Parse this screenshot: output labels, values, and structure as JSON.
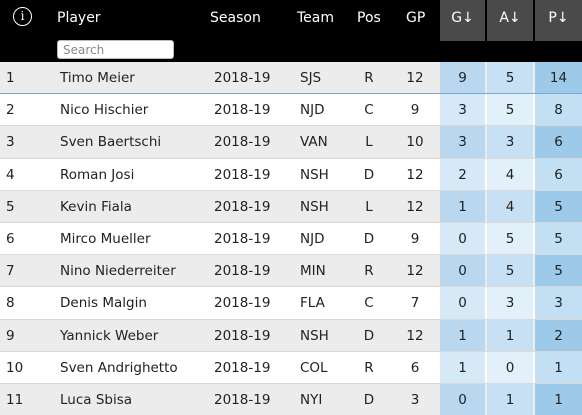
{
  "header": {
    "info_glyph": "i",
    "player": "Player",
    "season": "Season",
    "team": "Team",
    "pos": "Pos",
    "gp": "GP",
    "g": "G↓",
    "a": "A↓",
    "p": "P↓",
    "search_placeholder": "Search"
  },
  "colors": {
    "header_bg": "#000000",
    "sort_header_bg": "#4a4a4a",
    "row_even": "#ececec",
    "row_odd": "#ffffff",
    "g_even": "#b9d8ef",
    "g_odd": "#d6e9f7",
    "a_even": "#c8e0f3",
    "a_odd": "#e2f0fa",
    "p_even": "#9ecae9",
    "p_odd": "#c2dff3"
  },
  "rows": [
    {
      "rank": "1",
      "player": "Timo Meier",
      "season": "2018-19",
      "team": "SJS",
      "pos": "R",
      "gp": "12",
      "g": "9",
      "a": "5",
      "p": "14"
    },
    {
      "rank": "2",
      "player": "Nico Hischier",
      "season": "2018-19",
      "team": "NJD",
      "pos": "C",
      "gp": "9",
      "g": "3",
      "a": "5",
      "p": "8"
    },
    {
      "rank": "3",
      "player": "Sven Baertschi",
      "season": "2018-19",
      "team": "VAN",
      "pos": "L",
      "gp": "10",
      "g": "3",
      "a": "3",
      "p": "6"
    },
    {
      "rank": "4",
      "player": "Roman Josi",
      "season": "2018-19",
      "team": "NSH",
      "pos": "D",
      "gp": "12",
      "g": "2",
      "a": "4",
      "p": "6"
    },
    {
      "rank": "5",
      "player": "Kevin Fiala",
      "season": "2018-19",
      "team": "NSH",
      "pos": "L",
      "gp": "12",
      "g": "1",
      "a": "4",
      "p": "5"
    },
    {
      "rank": "6",
      "player": "Mirco Mueller",
      "season": "2018-19",
      "team": "NJD",
      "pos": "D",
      "gp": "9",
      "g": "0",
      "a": "5",
      "p": "5"
    },
    {
      "rank": "7",
      "player": "Nino Niederreiter",
      "season": "2018-19",
      "team": "MIN",
      "pos": "R",
      "gp": "12",
      "g": "0",
      "a": "5",
      "p": "5"
    },
    {
      "rank": "8",
      "player": "Denis Malgin",
      "season": "2018-19",
      "team": "FLA",
      "pos": "C",
      "gp": "7",
      "g": "0",
      "a": "3",
      "p": "3"
    },
    {
      "rank": "9",
      "player": "Yannick Weber",
      "season": "2018-19",
      "team": "NSH",
      "pos": "D",
      "gp": "12",
      "g": "1",
      "a": "1",
      "p": "2"
    },
    {
      "rank": "10",
      "player": "Sven Andrighetto",
      "season": "2018-19",
      "team": "COL",
      "pos": "R",
      "gp": "6",
      "g": "1",
      "a": "0",
      "p": "1"
    },
    {
      "rank": "11",
      "player": "Luca Sbisa",
      "season": "2018-19",
      "team": "NYI",
      "pos": "D",
      "gp": "3",
      "g": "0",
      "a": "1",
      "p": "1"
    }
  ]
}
